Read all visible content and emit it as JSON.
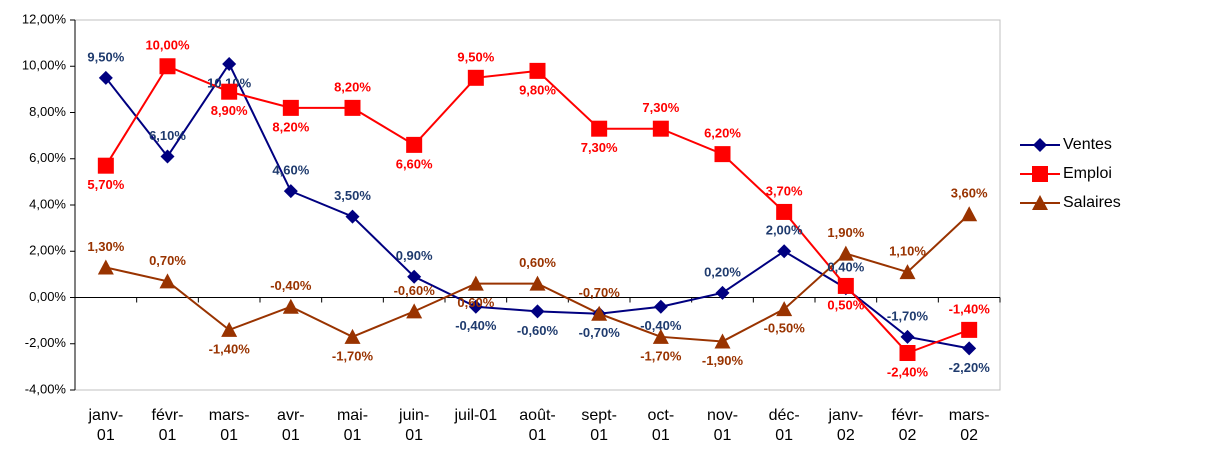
{
  "chart_data": {
    "type": "line",
    "categories": [
      "janv-01",
      "févr-01",
      "mars-01",
      "avr-01",
      "mai-01",
      "juin-01",
      "juil-01",
      "août-01",
      "sept-01",
      "oct-01",
      "nov-01",
      "déc-01",
      "janv-02",
      "févr-02",
      "mars-02"
    ],
    "series": [
      {
        "name": "Ventes",
        "color": "#000080",
        "label_color": "#1f3b6e",
        "marker": "diamond",
        "values": [
          9.5,
          6.1,
          10.1,
          4.6,
          3.5,
          0.9,
          -0.4,
          -0.6,
          -0.7,
          -0.4,
          0.2,
          2.0,
          0.4,
          -1.7,
          -2.2
        ],
        "value_labels": [
          "9,50%",
          "6,10%",
          "10,10%",
          "4,60%",
          "3,50%",
          "0,90%",
          "-0,40%",
          "-0,60%",
          "-0,70%",
          "-0,40%",
          "0,20%",
          "2,00%",
          "0,40%",
          "-1,70%",
          "-2,20%"
        ]
      },
      {
        "name": "Emploi",
        "color": "#ff0000",
        "label_color": "#ff0000",
        "marker": "square",
        "values": [
          5.7,
          10.0,
          8.9,
          8.2,
          8.2,
          6.6,
          9.5,
          9.8,
          7.3,
          7.3,
          6.2,
          3.7,
          0.5,
          -2.4,
          -1.4
        ],
        "value_labels": [
          "5,70%",
          "10,00%",
          "8,90%",
          "8,20%",
          "8,20%",
          "6,60%",
          "9,50%",
          "9,80%",
          "7,30%",
          "7,30%",
          "6,20%",
          "3,70%",
          "0,50%",
          "-2,40%",
          "-1,40%"
        ]
      },
      {
        "name": "Salaires",
        "color": "#993300",
        "label_color": "#993300",
        "marker": "triangle",
        "values": [
          1.3,
          0.7,
          -1.4,
          -0.4,
          -1.7,
          -0.6,
          0.6,
          0.6,
          -0.7,
          -1.7,
          -1.9,
          -0.5,
          1.9,
          1.1,
          3.6
        ],
        "value_labels": [
          "1,30%",
          "0,70%",
          "-1,40%",
          "-0,40%",
          "-1,70%",
          "-0,60%",
          "0,60%",
          "0,60%",
          "-0,70%",
          "-1,70%",
          "-1,90%",
          "-0,50%",
          "1,90%",
          "1,10%",
          "3,60%"
        ]
      }
    ],
    "ylim": [
      -4,
      12
    ],
    "yticks": [
      {
        "value": -4,
        "label": "-4,00%"
      },
      {
        "value": -2,
        "label": "-2,00%"
      },
      {
        "value": 0,
        "label": "0,00%"
      },
      {
        "value": 2,
        "label": "2,00%"
      },
      {
        "value": 4,
        "label": "4,00%"
      },
      {
        "value": 6,
        "label": "6,00%"
      },
      {
        "value": 8,
        "label": "8,00%"
      },
      {
        "value": 10,
        "label": "10,00%"
      },
      {
        "value": 12,
        "label": "12,00%"
      }
    ],
    "grid": false,
    "legend": "right"
  }
}
